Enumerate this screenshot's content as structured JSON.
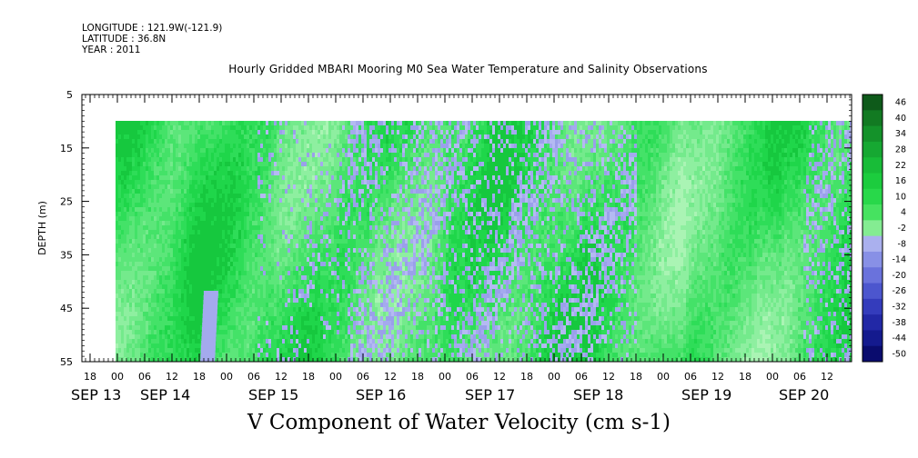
{
  "header": {
    "longitude": "LONGITUDE : 121.9W(-121.9)",
    "latitude": "LATITUDE : 36.8N",
    "year": "YEAR : 2011"
  },
  "chart_data": {
    "type": "heatmap",
    "title": "Hourly Gridded MBARI Mooring M0 Sea Water Temperature and Salinity Observations",
    "xlabel": "V Component of Water Velocity (cm s-1)",
    "ylabel": "DEPTH (m)",
    "ylim": [
      5,
      55
    ],
    "y_ticks": [
      "5",
      "15",
      "25",
      "35",
      "45",
      "55"
    ],
    "data_depth_range": [
      10,
      55
    ],
    "x_hour_ticks": [
      "18",
      "00",
      "06",
      "12",
      "18",
      "00",
      "06",
      "12",
      "18",
      "00",
      "06",
      "12",
      "18",
      "00",
      "06",
      "12",
      "18",
      "00",
      "06",
      "12",
      "18",
      "00",
      "06",
      "12",
      "18",
      "00",
      "06",
      "12",
      "18",
      "00",
      "06",
      "12"
    ],
    "x_day_labels": [
      "SEP 13",
      "SEP 14",
      "SEP 15",
      "SEP 16",
      "SEP 17",
      "SEP 18",
      "SEP 19",
      "SEP 20"
    ],
    "colorbar_levels": [
      "46",
      "40",
      "34",
      "28",
      "22",
      "16",
      "10",
      "4",
      "-2",
      "-8",
      "-14",
      "-20",
      "-26",
      "-32",
      "-38",
      "-44",
      "-50"
    ],
    "colorbar_colors": [
      "#0e5a1a",
      "#127a22",
      "#14922a",
      "#16a832",
      "#18bc38",
      "#1ccc3e",
      "#28d84a",
      "#46e260",
      "#84ec92",
      "#aab0ee",
      "#8890e6",
      "#6a72dc",
      "#4c56ce",
      "#343cbc",
      "#2228a6",
      "#141a8e",
      "#0a0c6e"
    ],
    "columns": [
      {
        "day": "SEP 13.75",
        "pattern": "green"
      },
      {
        "day": "SEP 14.0",
        "pattern": "green"
      },
      {
        "day": "SEP 14.5",
        "pattern": "green"
      },
      {
        "day": "SEP 14.75",
        "pattern": "green-with-deep-blue"
      },
      {
        "day": "SEP 15.0",
        "pattern": "green"
      },
      {
        "day": "SEP 15.5",
        "pattern": "green-with-blue-patches"
      },
      {
        "day": "SEP 16.0",
        "pattern": "mixed-blue-green"
      },
      {
        "day": "SEP 16.5",
        "pattern": "mixed-blue-green"
      },
      {
        "day": "SEP 17.0",
        "pattern": "mixed-blue-green"
      },
      {
        "day": "SEP 17.5",
        "pattern": "mixed-blue-green"
      },
      {
        "day": "SEP 18.0",
        "pattern": "mixed-blue-green"
      },
      {
        "day": "SEP 18.5",
        "pattern": "green"
      },
      {
        "day": "SEP 19.0",
        "pattern": "green"
      },
      {
        "day": "SEP 19.5",
        "pattern": "green"
      },
      {
        "day": "SEP 20.0",
        "pattern": "green"
      },
      {
        "day": "SEP 20.5",
        "pattern": "blue-at-top"
      }
    ],
    "grid": false,
    "legend": "right"
  }
}
